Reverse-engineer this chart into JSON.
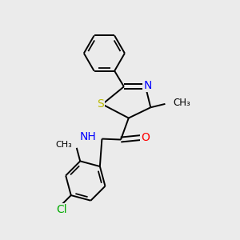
{
  "bg_color": "#ebebeb",
  "atom_colors": {
    "C": "#000000",
    "N": "#0000ff",
    "O": "#ff0000",
    "S": "#bbbb00",
    "Cl": "#00aa00",
    "H": "#708090"
  },
  "bond_color": "#000000",
  "bond_width": 1.4,
  "font_size": 10,
  "figsize": [
    3.0,
    3.0
  ],
  "dpi": 100,
  "xlim": [
    0.0,
    5.0
  ],
  "ylim": [
    -0.5,
    5.5
  ]
}
